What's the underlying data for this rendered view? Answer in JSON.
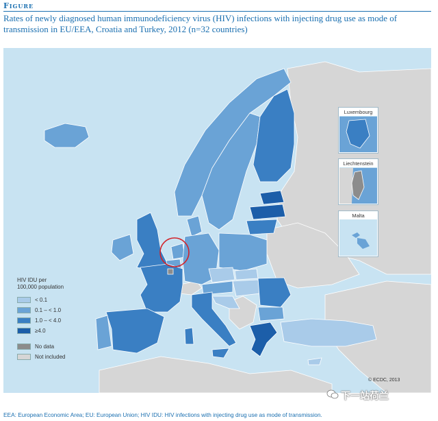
{
  "figure_label": "Figure",
  "title": "Rates of newly diagnosed human immunodeficiency virus (HIV) infections with injecting drug use as mode of transmission in EU/EEA, Croatia and Turkey, 2012 (n=32 countries)",
  "legend": {
    "title_line1": "HIV IDU per",
    "title_line2": "100,000 population",
    "classes": [
      {
        "label": "< 0.1",
        "color": "#a9cbe9"
      },
      {
        "label": "0.1 – < 1.0",
        "color": "#6aa3d6"
      },
      {
        "label": "1.0 – < 4.0",
        "color": "#3a7fc3"
      },
      {
        "label": "≥4.0",
        "color": "#1c5ea9"
      }
    ],
    "no_data": {
      "label": "No data",
      "color": "#8c8c8c"
    },
    "not_included": {
      "label": "Not included",
      "color": "#d6d6d6"
    }
  },
  "insets": {
    "luxembourg": "Luxembourg",
    "liechtenstein": "Liechtenstein",
    "malta": "Malta"
  },
  "copyright": "© ECDC, 2013",
  "watermark": "下一站荷兰",
  "footnote": "EEA: European Economic Area; EU: European Union; HIV IDU: HIV infections with injecting drug use as mode of transmission.",
  "colors": {
    "sea": "#c8e3f2",
    "accent": "#1a6fb0",
    "highlight_circle": "#d2232a"
  }
}
